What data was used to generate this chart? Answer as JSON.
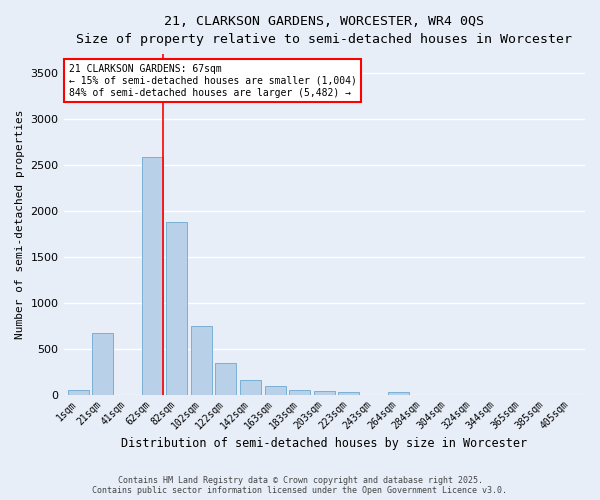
{
  "title_line1": "21, CLARKSON GARDENS, WORCESTER, WR4 0QS",
  "title_line2": "Size of property relative to semi-detached houses in Worcester",
  "xlabel": "Distribution of semi-detached houses by size in Worcester",
  "ylabel": "Number of semi-detached properties",
  "categories": [
    "1sqm",
    "21sqm",
    "41sqm",
    "62sqm",
    "82sqm",
    "102sqm",
    "122sqm",
    "142sqm",
    "163sqm",
    "183sqm",
    "203sqm",
    "223sqm",
    "243sqm",
    "264sqm",
    "284sqm",
    "304sqm",
    "324sqm",
    "344sqm",
    "365sqm",
    "385sqm",
    "405sqm"
  ],
  "values": [
    50,
    670,
    0,
    2580,
    1880,
    740,
    340,
    160,
    90,
    50,
    35,
    30,
    0,
    30,
    0,
    0,
    0,
    0,
    0,
    0,
    0
  ],
  "bar_color": "#b8d0e8",
  "bar_edge_color": "#7aafd4",
  "red_line_x": 3.425,
  "ylim": [
    0,
    3700
  ],
  "yticks": [
    0,
    500,
    1000,
    1500,
    2000,
    2500,
    3000,
    3500
  ],
  "annotation_title": "21 CLARKSON GARDENS: 67sqm",
  "annotation_line2": "← 15% of semi-detached houses are smaller (1,004)",
  "annotation_line3": "84% of semi-detached houses are larger (5,482) →",
  "footer_line1": "Contains HM Land Registry data © Crown copyright and database right 2025.",
  "footer_line2": "Contains public sector information licensed under the Open Government Licence v3.0.",
  "bg_color": "#e8eef8",
  "plot_bg_color": "#e8eef8"
}
